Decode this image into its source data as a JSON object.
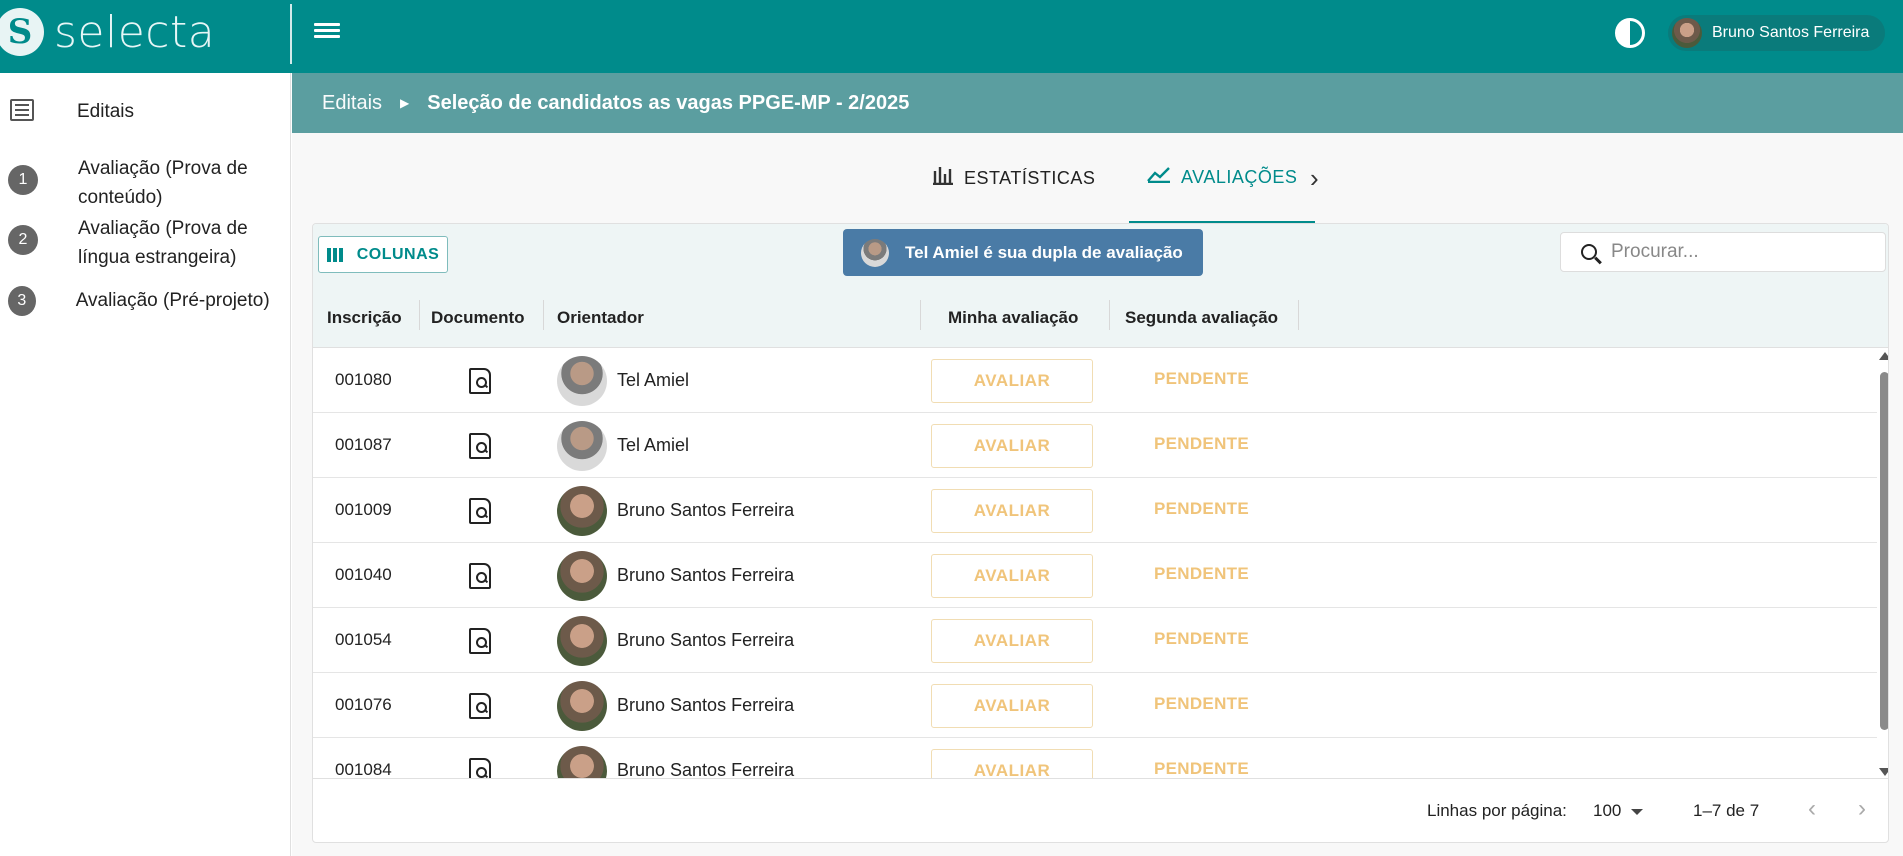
{
  "app": {
    "name": "selecta",
    "logo_letter": "S"
  },
  "header": {
    "user_name": "Bruno Santos Ferreira"
  },
  "sidebar": {
    "items": [
      {
        "label": "Editais",
        "icon": "list-icon"
      },
      {
        "number": "1",
        "label": "Avaliação (Prova de conteúdo)"
      },
      {
        "number": "2",
        "label": "Avaliação (Prova de língua estrangeira)"
      },
      {
        "number": "3",
        "label": "Avaliação (Pré-projeto)"
      }
    ]
  },
  "breadcrumb": {
    "root": "Editais",
    "current": "Seleção de candidatos as vagas PPGE-MP - 2/2025"
  },
  "tabs": [
    {
      "label": "ESTATÍSTICAS",
      "icon": "bar-chart-icon"
    },
    {
      "label": "AVALIAÇÕES",
      "icon": "trending-icon",
      "active": true
    }
  ],
  "toolbar": {
    "columns_label": "COLUNAS",
    "pair_message": "Tel Amiel é sua dupla de avaliação",
    "search_placeholder": "Procurar..."
  },
  "table": {
    "headers": [
      "Inscrição",
      "Documento",
      "Orientador",
      "Minha avaliação",
      "Segunda avaliação"
    ],
    "button_label": "AVALIAR",
    "rows": [
      {
        "inscricao": "001080",
        "orientador": "Tel Amiel",
        "status": "PENDENTE"
      },
      {
        "inscricao": "001087",
        "orientador": "Tel Amiel",
        "status": "PENDENTE"
      },
      {
        "inscricao": "001009",
        "orientador": "Bruno Santos Ferreira",
        "status": "PENDENTE"
      },
      {
        "inscricao": "001040",
        "orientador": "Bruno Santos Ferreira",
        "status": "PENDENTE"
      },
      {
        "inscricao": "001054",
        "orientador": "Bruno Santos Ferreira",
        "status": "PENDENTE"
      },
      {
        "inscricao": "001076",
        "orientador": "Bruno Santos Ferreira",
        "status": "PENDENTE"
      },
      {
        "inscricao": "001084",
        "orientador": "Bruno Santos Ferreira",
        "status": "PENDENTE"
      }
    ]
  },
  "footer": {
    "rows_per_page_label": "Linhas por página:",
    "rows_per_page": "100",
    "range": "1–7 de 7"
  },
  "colors": {
    "primary": "#008b8b",
    "breadcrumb_bar": "#5b9ea0",
    "badge": "#4a7ba6",
    "pending": "#f0c47a"
  }
}
